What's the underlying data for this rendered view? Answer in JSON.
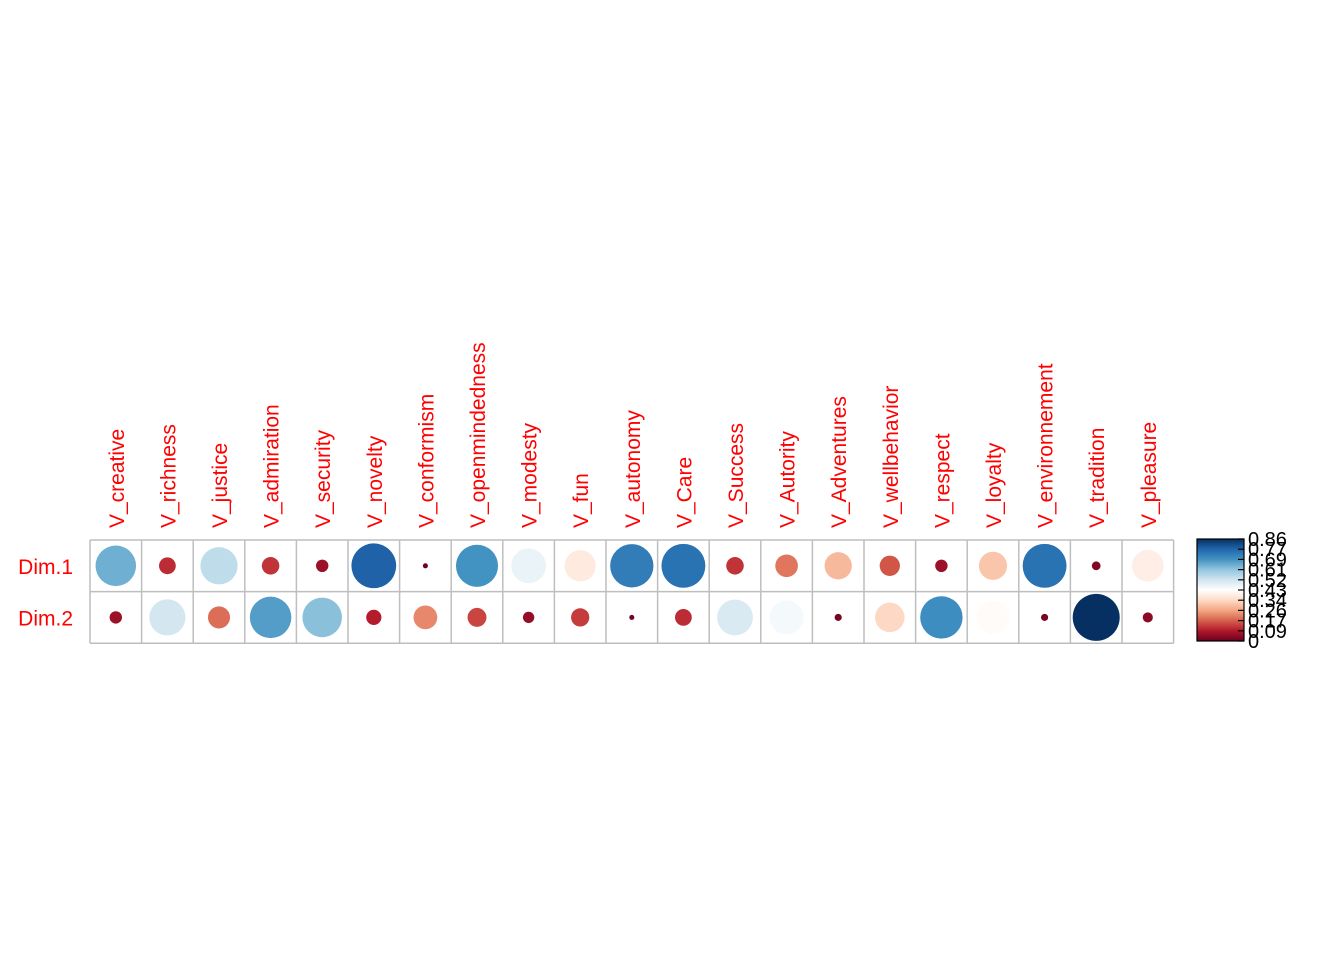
{
  "chart_data": {
    "type": "heatmap",
    "subtype": "corrplot-circle",
    "title": "",
    "xlabel": "",
    "ylabel": "",
    "columns": [
      "V_creative",
      "V_richness",
      "V_justice",
      "V_admiration",
      "V_security",
      "V_novelty",
      "V_conformism",
      "V_openmindedness",
      "V_modesty",
      "V_fun",
      "V_autonomy",
      "V_Care",
      "V_Success",
      "V_Autority",
      "V_Adventures",
      "V_wellbehavior",
      "V_respect",
      "V_loyalty",
      "V_environnement",
      "V_tradition",
      "V_pleasure"
    ],
    "rows": [
      "Dim.1",
      "Dim.2"
    ],
    "values": [
      [
        0.64,
        0.11,
        0.54,
        0.12,
        0.06,
        0.78,
        0.01,
        0.69,
        0.47,
        0.38,
        0.73,
        0.75,
        0.12,
        0.2,
        0.29,
        0.16,
        0.06,
        0.31,
        0.75,
        0.03,
        0.39
      ],
      [
        0.06,
        0.51,
        0.19,
        0.67,
        0.61,
        0.09,
        0.22,
        0.14,
        0.05,
        0.13,
        0.01,
        0.11,
        0.5,
        0.45,
        0.02,
        0.34,
        0.7,
        0.42,
        0.02,
        0.86,
        0.04
      ]
    ],
    "color_scale": {
      "range": [
        0,
        0.86
      ],
      "tick_labels": [
        "0",
        "0.09",
        "0.17",
        "0.26",
        "0.34",
        "0.43",
        "0.52",
        "0.61",
        "0.69",
        "0.77",
        "0.86"
      ],
      "colors": [
        "#67001F",
        "#B2182B",
        "#D6604D",
        "#F4A582",
        "#FDDBC7",
        "#FFFFFF",
        "#D1E5F0",
        "#92C5DE",
        "#4393C3",
        "#2166AC",
        "#053061"
      ]
    },
    "label_color": "#FF0000",
    "grid_color": "#BEBEBE",
    "grid": true,
    "legend": "right"
  }
}
